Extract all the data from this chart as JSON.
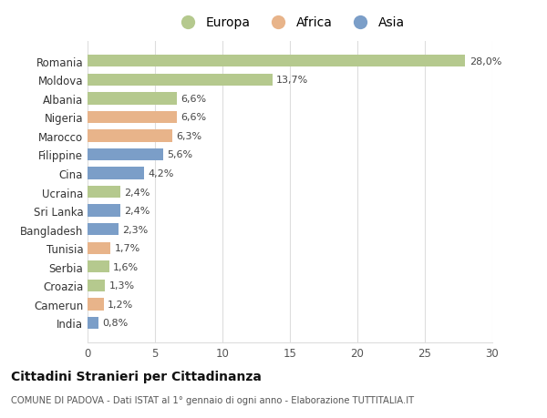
{
  "categories": [
    "Romania",
    "Moldova",
    "Albania",
    "Nigeria",
    "Marocco",
    "Filippine",
    "Cina",
    "Ucraina",
    "Sri Lanka",
    "Bangladesh",
    "Tunisia",
    "Serbia",
    "Croazia",
    "Camerun",
    "India"
  ],
  "values": [
    28.0,
    13.7,
    6.6,
    6.6,
    6.3,
    5.6,
    4.2,
    2.4,
    2.4,
    2.3,
    1.7,
    1.6,
    1.3,
    1.2,
    0.8
  ],
  "labels": [
    "28,0%",
    "13,7%",
    "6,6%",
    "6,6%",
    "6,3%",
    "5,6%",
    "4,2%",
    "2,4%",
    "2,4%",
    "2,3%",
    "1,7%",
    "1,6%",
    "1,3%",
    "1,2%",
    "0,8%"
  ],
  "colors": [
    "#b5c98e",
    "#b5c98e",
    "#b5c98e",
    "#e8b48a",
    "#e8b48a",
    "#7b9ec8",
    "#7b9ec8",
    "#b5c98e",
    "#7b9ec8",
    "#7b9ec8",
    "#e8b48a",
    "#b5c98e",
    "#b5c98e",
    "#e8b48a",
    "#7b9ec8"
  ],
  "continent_labels": [
    "Europa",
    "Africa",
    "Asia"
  ],
  "continent_colors": [
    "#b5c98e",
    "#e8b48a",
    "#7b9ec8"
  ],
  "xlim": [
    0,
    30
  ],
  "xticks": [
    0,
    5,
    10,
    15,
    20,
    25,
    30
  ],
  "title": "Cittadini Stranieri per Cittadinanza",
  "subtitle": "COMUNE DI PADOVA - Dati ISTAT al 1° gennaio di ogni anno - Elaborazione TUTTITALIA.IT",
  "bg_color": "#ffffff",
  "grid_color": "#dddddd"
}
